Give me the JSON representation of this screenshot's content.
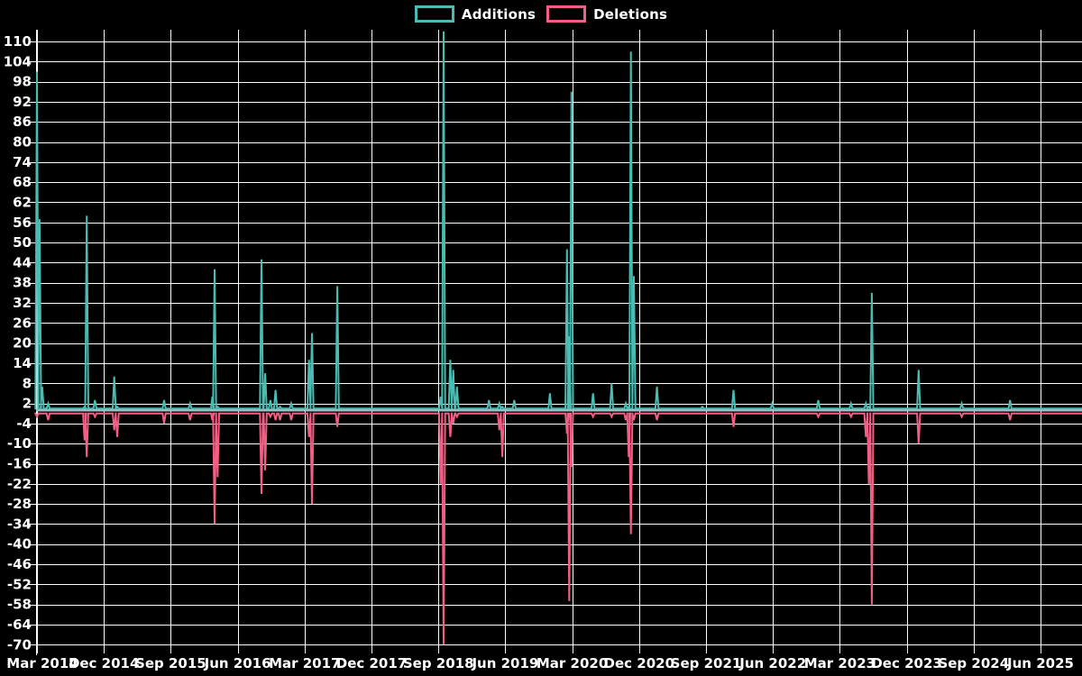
{
  "legend": {
    "additions_label": "Additions",
    "deletions_label": "Deletions"
  },
  "colors": {
    "background": "#000000",
    "grid": "#ffffff",
    "text": "#ffffff",
    "additions": "#49bdb3",
    "deletions": "#f35e84",
    "zero_line": "#a5bfc8"
  },
  "chart_data": {
    "type": "line",
    "title": "",
    "legend_position": "top-center",
    "grid": true,
    "x_tick_labels": [
      "Mar 2014",
      "Dec 2014",
      "Sep 2015",
      "Jun 2016",
      "Mar 2017",
      "Dec 2017",
      "Sep 2018",
      "Jun 2019",
      "Mar 2020",
      "Dec 2020",
      "Sep 2021",
      "Jun 2022",
      "Mar 2023",
      "Dec 2023",
      "Sep 2024",
      "Jun 2025"
    ],
    "months_per_x_tick": 9,
    "y_tick_labels": [
      110,
      104,
      98,
      92,
      86,
      80,
      74,
      68,
      62,
      56,
      50,
      44,
      38,
      32,
      26,
      20,
      14,
      8,
      2,
      -4,
      -10,
      -16,
      -22,
      -28,
      -34,
      -40,
      -46,
      -52,
      -58,
      -64,
      -70
    ],
    "ylim": [
      -71,
      113.5
    ],
    "series_names": [
      "Additions",
      "Deletions"
    ],
    "baseline_additions": 0.5,
    "baseline_deletions": -1.0,
    "events_comment": "m = months after Mar 2014; add = additions spike height; del = deletions spike depth (0 = none)",
    "events": [
      {
        "m": 0.0,
        "add": 101,
        "del": -2
      },
      {
        "m": 0.35,
        "add": 57,
        "del": 0
      },
      {
        "m": 0.7,
        "add": 7,
        "del": -1
      },
      {
        "m": 1.5,
        "add": 2,
        "del": -3
      },
      {
        "m": 6.4,
        "add": 1,
        "del": -9
      },
      {
        "m": 6.7,
        "add": 58,
        "del": -14
      },
      {
        "m": 7.8,
        "add": 3,
        "del": -2
      },
      {
        "m": 10.4,
        "add": 10,
        "del": -6
      },
      {
        "m": 10.8,
        "add": 1,
        "del": -8
      },
      {
        "m": 17.1,
        "add": 3,
        "del": -4
      },
      {
        "m": 20.6,
        "add": 2,
        "del": -3
      },
      {
        "m": 23.6,
        "add": 4,
        "del": -3
      },
      {
        "m": 23.9,
        "add": 42,
        "del": -34
      },
      {
        "m": 24.3,
        "add": 1,
        "del": -20
      },
      {
        "m": 30.2,
        "add": 45,
        "del": -25
      },
      {
        "m": 30.7,
        "add": 11,
        "del": -18
      },
      {
        "m": 31.4,
        "add": 3,
        "del": -2
      },
      {
        "m": 32.1,
        "add": 6,
        "del": -3
      },
      {
        "m": 32.7,
        "add": 1,
        "del": -3
      },
      {
        "m": 34.2,
        "add": 2,
        "del": -3
      },
      {
        "m": 36.6,
        "add": 15,
        "del": -8
      },
      {
        "m": 37.0,
        "add": 23,
        "del": -28
      },
      {
        "m": 40.4,
        "add": 37,
        "del": -5
      },
      {
        "m": 54.3,
        "add": 4,
        "del": -22
      },
      {
        "m": 54.7,
        "add": 113,
        "del": -70
      },
      {
        "m": 55.6,
        "add": 15,
        "del": -8
      },
      {
        "m": 56.0,
        "add": 12,
        "del": -4
      },
      {
        "m": 56.5,
        "add": 7,
        "del": -2
      },
      {
        "m": 60.8,
        "add": 3,
        "del": -1
      },
      {
        "m": 62.2,
        "add": 2,
        "del": -6
      },
      {
        "m": 62.6,
        "add": 1,
        "del": -14
      },
      {
        "m": 64.2,
        "add": 3,
        "del": -1
      },
      {
        "m": 69.0,
        "add": 5,
        "del": -1
      },
      {
        "m": 71.3,
        "add": 48,
        "del": -7
      },
      {
        "m": 71.6,
        "add": 22,
        "del": -57
      },
      {
        "m": 71.9,
        "add": 95,
        "del": -17
      },
      {
        "m": 74.8,
        "add": 5,
        "del": -2
      },
      {
        "m": 77.3,
        "add": 8,
        "del": -2
      },
      {
        "m": 79.2,
        "add": 2,
        "del": -3
      },
      {
        "m": 79.6,
        "add": 1,
        "del": -14
      },
      {
        "m": 79.9,
        "add": 107,
        "del": -37
      },
      {
        "m": 80.3,
        "add": 40,
        "del": -3
      },
      {
        "m": 83.4,
        "add": 7,
        "del": -3
      },
      {
        "m": 89.5,
        "add": 1,
        "del": -1
      },
      {
        "m": 93.7,
        "add": 6,
        "del": -5
      },
      {
        "m": 98.9,
        "add": 2,
        "del": -1
      },
      {
        "m": 105.1,
        "add": 3,
        "del": -2
      },
      {
        "m": 109.5,
        "add": 2,
        "del": -2
      },
      {
        "m": 111.5,
        "add": 2,
        "del": -8
      },
      {
        "m": 111.9,
        "add": 1,
        "del": -22
      },
      {
        "m": 112.3,
        "add": 35,
        "del": -58
      },
      {
        "m": 118.6,
        "add": 12,
        "del": -10
      },
      {
        "m": 124.4,
        "add": 2,
        "del": -2
      },
      {
        "m": 130.9,
        "add": 3,
        "del": -3
      }
    ]
  }
}
